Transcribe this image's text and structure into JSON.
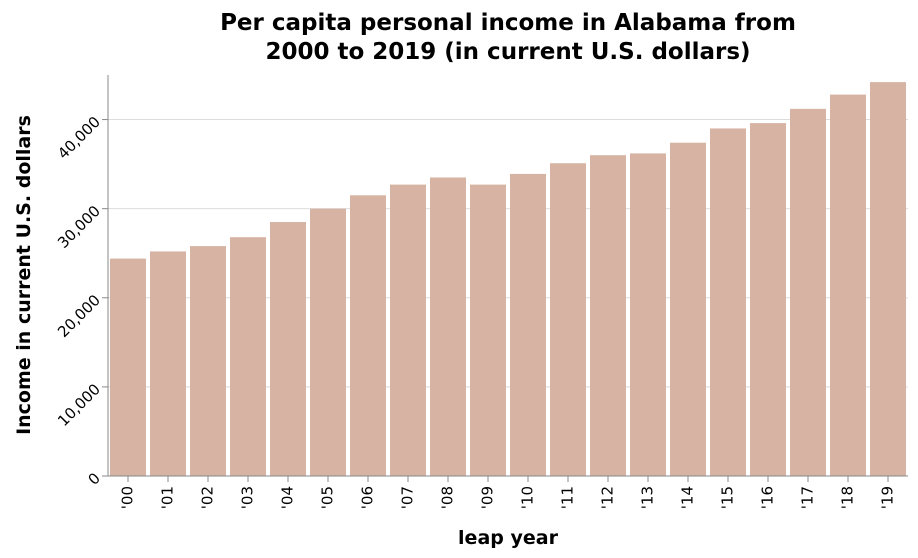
{
  "chart_data": {
    "type": "bar",
    "title": [
      "Per capita personal income in Alabama from",
      "2000 to 2019 (in current U.S. dollars)"
    ],
    "xlabel": "leap year",
    "ylabel": "Income in current U.S. dollars",
    "categories": [
      "'00",
      "'01",
      "'02",
      "'03",
      "'04",
      "'05",
      "'06",
      "'07",
      "'08",
      "'09",
      "'10",
      "'11",
      "'12",
      "'13",
      "'14",
      "'15",
      "'16",
      "'17",
      "'18",
      "'19"
    ],
    "values": [
      24400,
      25200,
      25800,
      26800,
      28500,
      30000,
      31500,
      32700,
      33500,
      32700,
      33900,
      35100,
      36000,
      36200,
      37400,
      39000,
      39600,
      41200,
      42800,
      44200
    ],
    "ylim": [
      0,
      45000
    ],
    "yticks": [
      0,
      10000,
      20000,
      30000,
      40000
    ],
    "ytick_labels": [
      "0",
      "10,000",
      "20,000",
      "30,000",
      "40,000"
    ],
    "grid": true,
    "bar_color": "#d6b3a3",
    "grid_color": "#dddddd",
    "axis_color": "#888888"
  }
}
